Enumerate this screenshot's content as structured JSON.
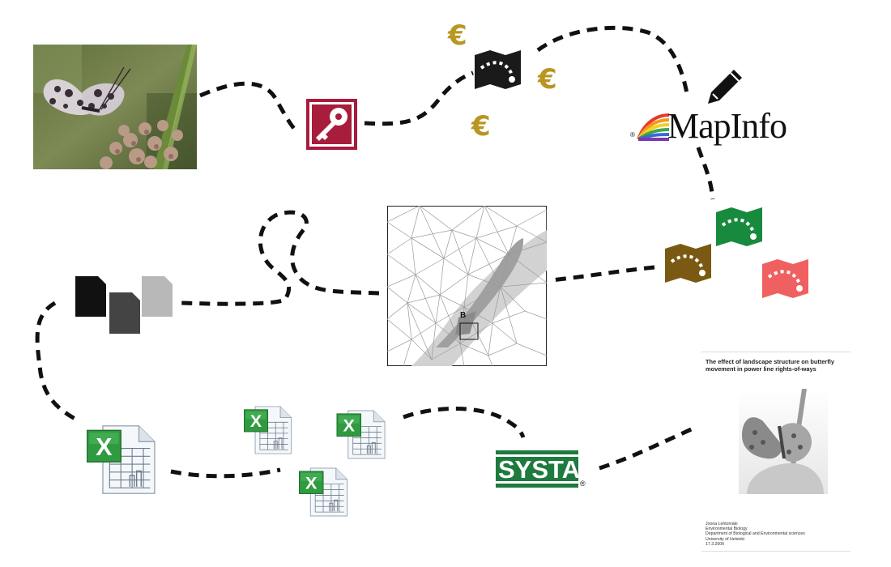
{
  "icons": {
    "euro_symbol": "€",
    "euro_color": "#b89620",
    "access_key_icon": "access-key-icon",
    "map_icon": "folded-map-icon",
    "pencil_icon": "pencil-icon",
    "document_stack_icon": "document-stack-icon",
    "spreadsheet_icon": "excel-spreadsheet-icon",
    "excel_letter": "X"
  },
  "logos": {
    "mapinfo": "MapInfo",
    "systat": "SYSTAT",
    "registered": "®"
  },
  "map_panel": {
    "label": "B"
  },
  "map_colors": {
    "dark": "#1a1a1a",
    "brown": "#7a5a12",
    "green": "#188a3e",
    "red": "#f06060"
  },
  "thesis": {
    "title": "The effect of landscape structure on butterfly movement in power line rights-of-ways",
    "author_lines": "Joona Lehtomäki\nEnvironmental Biology\nDepartment of Biological and Environmental sciences\nUniversity of Helsinki\n17.3.2006"
  }
}
